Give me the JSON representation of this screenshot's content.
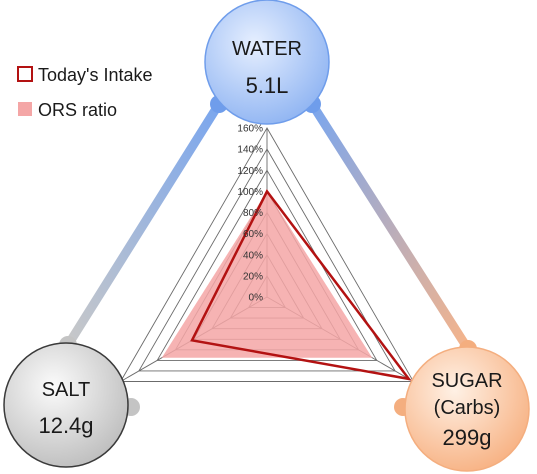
{
  "legend": {
    "position": "top-left",
    "items": [
      {
        "label": "Today's Intake",
        "style": "outline",
        "color": "#b31212"
      },
      {
        "label": "ORS ratio",
        "style": "fill",
        "color": "#f4a6a6"
      }
    ]
  },
  "nodes": {
    "water": {
      "name": "WATER",
      "value": "5.1L",
      "color": "#8fb4f2"
    },
    "salt": {
      "name": "SALT",
      "value": "12.4g",
      "color": "#c9c9c9"
    },
    "sugar": {
      "name_line1": "SUGAR",
      "name_line2": "(Carbs)",
      "value": "299g",
      "color": "#f7b98a"
    }
  },
  "chart_data": {
    "type": "radar",
    "axes": [
      "WATER",
      "SUGAR (Carbs)",
      "SALT"
    ],
    "rlim": [
      0,
      160
    ],
    "tick_step": 20,
    "tick_labels": [
      "0%",
      "20%",
      "40%",
      "60%",
      "80%",
      "100%",
      "120%",
      "140%",
      "160%"
    ],
    "grid": true,
    "series": [
      {
        "name": "Today's Intake",
        "style": "outline",
        "color": "#b31212",
        "values": [
          100,
          155,
          82
        ]
      },
      {
        "name": "ORS ratio",
        "style": "fill",
        "color": "#f4a6a6",
        "values": [
          100,
          115,
          115
        ]
      }
    ]
  }
}
